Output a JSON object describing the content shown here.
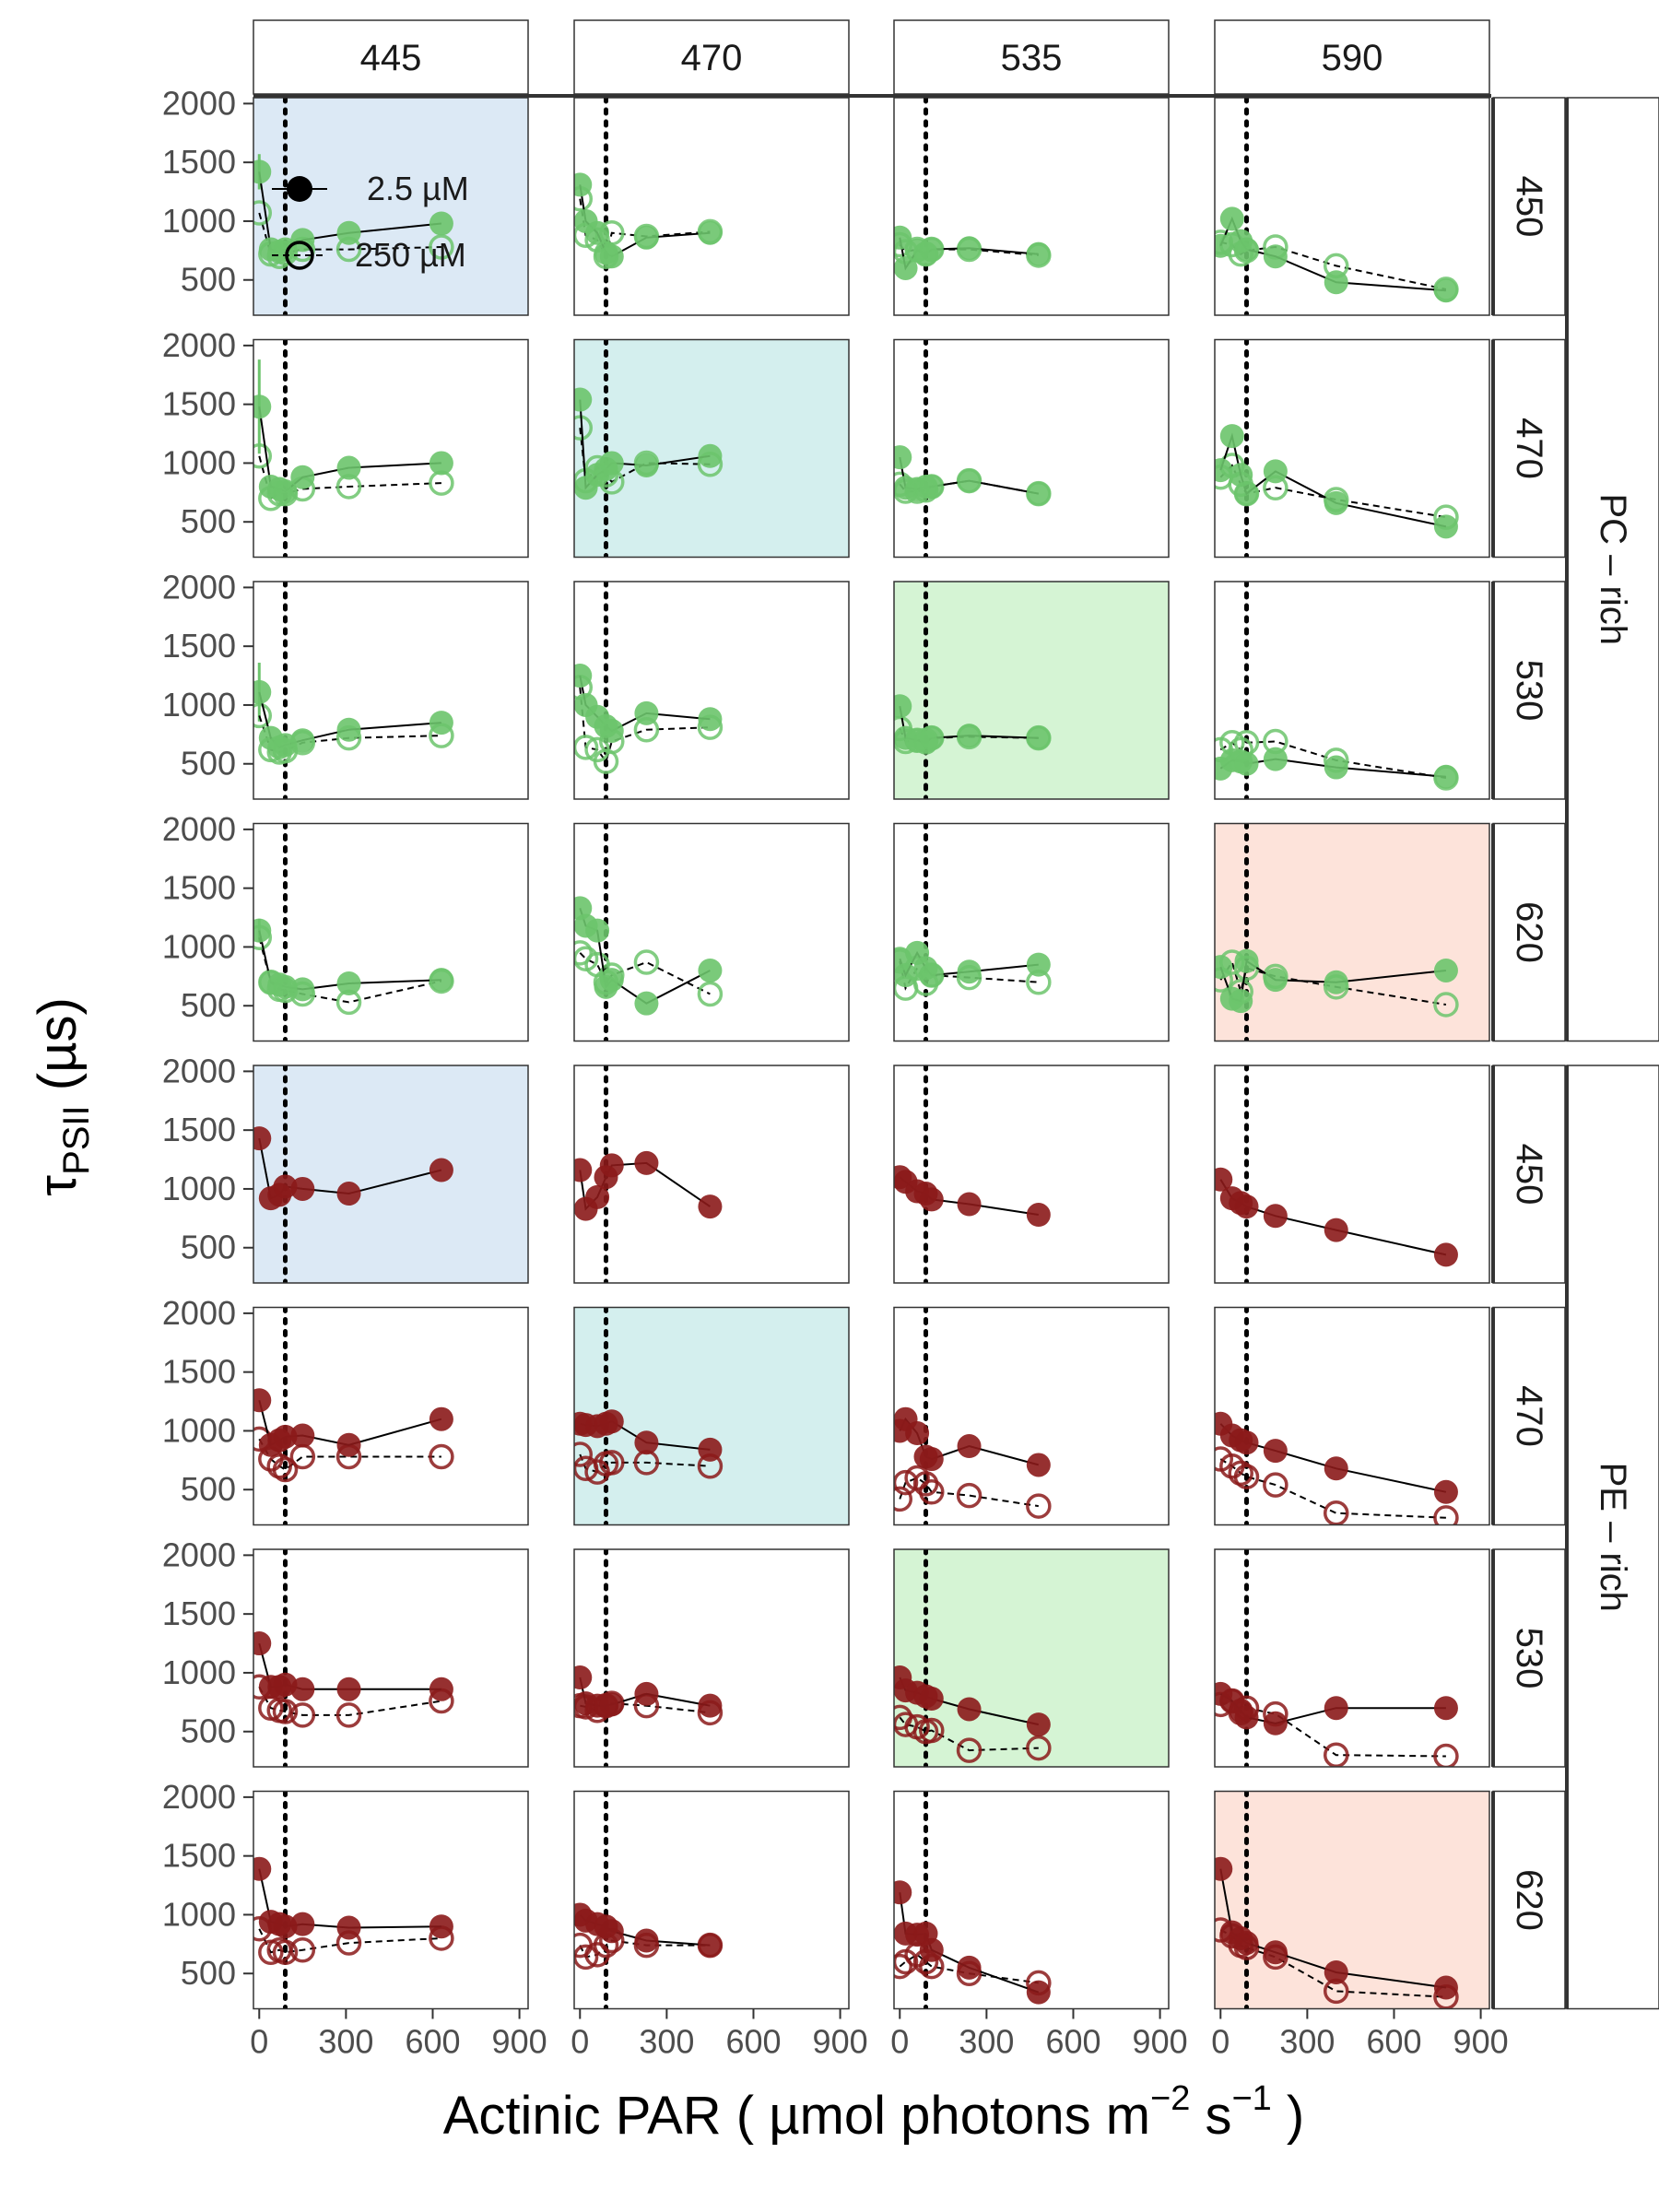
{
  "chart_data": {
    "type": "scatter",
    "xlabel": "Actinic PAR ( µmol photons  m⁻²  s⁻¹ )",
    "xlabel_parts": {
      "main": "Actinic PAR ( µmol photons  m",
      "exp1": "−2",
      "mid": "  s",
      "exp2": "−1",
      "end": " )"
    },
    "ylabel": "τPSII (µs)",
    "ylabel_parts": {
      "symbol": "τ",
      "subscript": "PSII",
      "unit": " (µs)"
    },
    "xlim": [
      -20,
      930
    ],
    "ylim": [
      200,
      2050
    ],
    "x_ticks": [
      "0",
      "300",
      "600",
      "900"
    ],
    "x_tick_values": [
      0,
      300,
      600,
      900
    ],
    "y_ticks": [
      "500",
      "1000",
      "1500",
      "2000"
    ],
    "y_tick_values": [
      500,
      1000,
      1500,
      2000
    ],
    "dotted_line_x": 90,
    "column_labels": [
      "445",
      "470",
      "535",
      "590"
    ],
    "row_labels": [
      "450",
      "470",
      "530",
      "620",
      "450",
      "470",
      "530",
      "620"
    ],
    "groups": [
      {
        "label": "PC – rich",
        "rows": [
          0,
          1,
          2,
          3
        ],
        "color": "#6cc46c"
      },
      {
        "label": "PE – rich",
        "rows": [
          4,
          5,
          6,
          7
        ],
        "color": "#8b1a1a"
      }
    ],
    "legend": {
      "entries": [
        "2.5 µM",
        "250 µM"
      ],
      "placement": "top-left panel, upper-right"
    },
    "highlight_colors": {
      "445": "#dce9f5",
      "470": "#d4efee",
      "535": "#d5f4d4",
      "590": "#fde3da"
    },
    "highlighted_panels": [
      {
        "row": 0,
        "col": 0
      },
      {
        "row": 1,
        "col": 1
      },
      {
        "row": 2,
        "col": 2
      },
      {
        "row": 3,
        "col": 3
      },
      {
        "row": 4,
        "col": 0
      },
      {
        "row": 5,
        "col": 1
      },
      {
        "row": 6,
        "col": 2
      },
      {
        "row": 7,
        "col": 3
      }
    ],
    "col_x": [
      [
        0,
        40,
        70,
        90,
        150,
        310,
        630
      ],
      [
        0,
        20,
        60,
        90,
        110,
        230,
        450
      ],
      [
        0,
        20,
        60,
        90,
        110,
        240,
        480
      ],
      [
        0,
        40,
        70,
        90,
        190,
        400,
        780
      ]
    ],
    "panels": [
      [
        {
          "solid": [
            1420,
            760,
            740,
            760,
            840,
            900,
            980
          ],
          "dashed": [
            1070,
            720,
            700,
            730,
            760,
            760,
            780
          ],
          "err": [
            150,
            0,
            0,
            0,
            0,
            0,
            0
          ]
        },
        {
          "solid": [
            1310,
            1000,
            900,
            730,
            700,
            860,
            900
          ],
          "dashed": [
            1190,
            880,
            840,
            700,
            900,
            870,
            910
          ]
        },
        {
          "solid": [
            860,
            600,
            750,
            720,
            760,
            770,
            720
          ],
          "dashed": [
            800,
            740,
            760,
            720,
            760,
            760,
            710
          ]
        },
        {
          "solid": [
            790,
            1020,
            830,
            760,
            700,
            480,
            410
          ],
          "dashed": [
            820,
            800,
            720,
            750,
            780,
            620,
            420
          ]
        }
      ],
      [
        {
          "solid": [
            1480,
            800,
            780,
            760,
            880,
            960,
            1000
          ],
          "dashed": [
            1060,
            700,
            740,
            740,
            780,
            800,
            830
          ],
          "err": [
            400,
            0,
            0,
            0,
            0,
            0,
            0
          ]
        },
        {
          "solid": [
            1540,
            790,
            900,
            950,
            1000,
            980,
            1060
          ],
          "dashed": [
            1300,
            850,
            960,
            900,
            840,
            1000,
            990
          ]
        },
        {
          "solid": [
            1050,
            790,
            780,
            800,
            800,
            850,
            740
          ],
          "dashed": [
            820,
            760,
            760,
            770,
            800,
            850,
            740
          ]
        },
        {
          "solid": [
            940,
            1230,
            900,
            740,
            930,
            660,
            460
          ],
          "dashed": [
            880,
            980,
            820,
            740,
            790,
            690,
            540
          ]
        }
      ],
      [
        {
          "solid": [
            1110,
            720,
            640,
            660,
            700,
            790,
            850
          ],
          "dashed": [
            910,
            620,
            600,
            610,
            680,
            720,
            740
          ],
          "err": [
            250,
            0,
            0,
            0,
            0,
            0,
            0
          ]
        },
        {
          "solid": [
            1250,
            1000,
            900,
            820,
            780,
            930,
            880
          ],
          "dashed": [
            1150,
            640,
            620,
            520,
            690,
            790,
            810
          ]
        },
        {
          "solid": [
            990,
            720,
            700,
            680,
            720,
            740,
            720
          ],
          "dashed": [
            800,
            690,
            700,
            700,
            720,
            730,
            720
          ]
        },
        {
          "solid": [
            460,
            530,
            520,
            500,
            540,
            470,
            390
          ],
          "dashed": [
            620,
            680,
            620,
            680,
            690,
            530,
            380
          ]
        }
      ],
      [
        {
          "solid": [
            1140,
            700,
            680,
            660,
            640,
            690,
            720
          ],
          "dashed": [
            1080,
            700,
            640,
            630,
            600,
            530,
            710
          ],
          "err": [
            100,
            0,
            0,
            0,
            0,
            0,
            0
          ]
        },
        {
          "solid": [
            1330,
            1180,
            1140,
            660,
            720,
            520,
            800
          ],
          "dashed": [
            950,
            900,
            850,
            700,
            760,
            870,
            600
          ]
        },
        {
          "solid": [
            900,
            760,
            950,
            820,
            760,
            790,
            850
          ],
          "dashed": [
            880,
            650,
            820,
            690,
            760,
            740,
            700
          ]
        },
        {
          "solid": [
            830,
            560,
            540,
            880,
            720,
            700,
            800
          ],
          "dashed": [
            720,
            870,
            620,
            820,
            750,
            660,
            510
          ]
        }
      ],
      [
        {
          "solid": [
            1430,
            920,
            950,
            1020,
            1000,
            960,
            1160
          ]
        },
        {
          "solid": [
            1160,
            830,
            930,
            1100,
            1200,
            1220,
            850
          ]
        },
        {
          "solid": [
            1100,
            1060,
            980,
            960,
            910,
            870,
            780
          ]
        },
        {
          "solid": [
            1080,
            920,
            880,
            850,
            770,
            650,
            440
          ]
        }
      ],
      [
        {
          "solid": [
            1260,
            880,
            920,
            950,
            960,
            880,
            1100
          ],
          "dashed": [
            930,
            760,
            700,
            670,
            780,
            780,
            780
          ]
        },
        {
          "solid": [
            1060,
            1050,
            1040,
            1060,
            1080,
            900,
            840
          ],
          "dashed": [
            800,
            680,
            650,
            720,
            730,
            730,
            700
          ]
        },
        {
          "solid": [
            1000,
            1100,
            980,
            780,
            760,
            870,
            710
          ],
          "dashed": [
            420,
            560,
            600,
            550,
            480,
            450,
            360
          ]
        },
        {
          "solid": [
            1060,
            960,
            920,
            900,
            830,
            680,
            480
          ],
          "dashed": [
            760,
            700,
            640,
            610,
            540,
            300,
            260
          ]
        }
      ],
      [
        {
          "solid": [
            1250,
            880,
            880,
            900,
            860,
            860,
            860
          ],
          "dashed": [
            880,
            700,
            680,
            670,
            640,
            640,
            760
          ]
        },
        {
          "solid": [
            960,
            740,
            720,
            720,
            730,
            820,
            720
          ],
          "dashed": [
            720,
            710,
            680,
            720,
            740,
            720,
            660
          ]
        },
        {
          "solid": [
            960,
            850,
            830,
            800,
            780,
            690,
            560
          ],
          "dashed": [
            620,
            560,
            540,
            500,
            510,
            340,
            360
          ]
        },
        {
          "solid": [
            820,
            760,
            680,
            620,
            570,
            700,
            700
          ],
          "dashed": [
            730,
            760,
            660,
            700,
            650,
            300,
            290
          ]
        }
      ],
      [
        {
          "solid": [
            1390,
            940,
            920,
            900,
            920,
            890,
            900
          ],
          "dashed": [
            880,
            680,
            700,
            680,
            700,
            760,
            800
          ]
        },
        {
          "solid": [
            1000,
            950,
            920,
            900,
            860,
            780,
            740
          ],
          "dashed": [
            740,
            640,
            660,
            740,
            780,
            740,
            740
          ]
        },
        {
          "solid": [
            1190,
            840,
            830,
            840,
            700,
            550,
            340
          ],
          "dashed": [
            560,
            600,
            660,
            600,
            560,
            500,
            420
          ]
        },
        {
          "solid": [
            1390,
            850,
            800,
            760,
            680,
            510,
            380
          ],
          "dashed": [
            870,
            820,
            740,
            720,
            640,
            350,
            300
          ]
        }
      ]
    ]
  }
}
